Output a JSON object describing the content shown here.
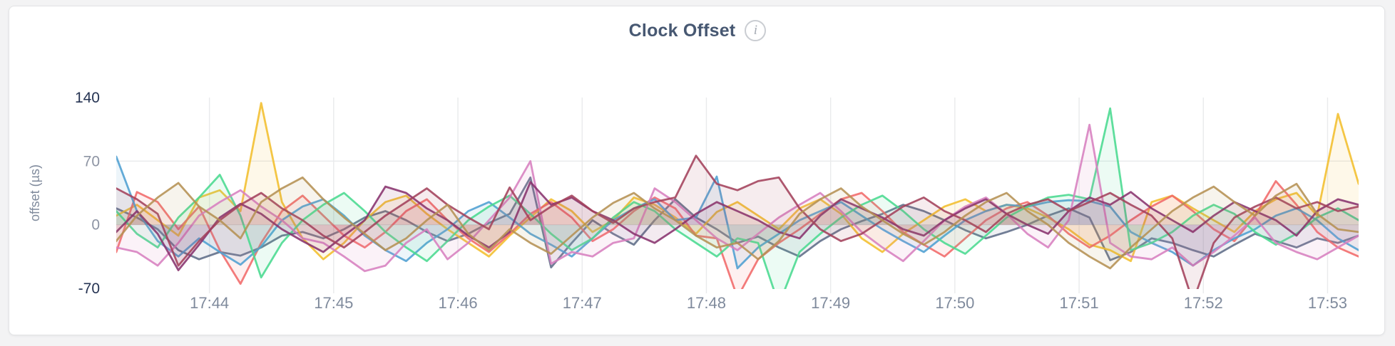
{
  "header": {
    "title": "Clock Offset",
    "info_icon_glyph": "i"
  },
  "chart_data": {
    "type": "line",
    "title": "Clock Offset",
    "xlabel": "",
    "ylabel": "offset (µs)",
    "ylim": [
      -70,
      140
    ],
    "grid": "on",
    "legend_position": "none",
    "x_window_seconds": 600,
    "sample_interval_seconds": 10,
    "yticks": [
      {
        "value": 140,
        "label": "140",
        "emphasized": true,
        "gridline": false
      },
      {
        "value": 70,
        "label": "70",
        "emphasized": false,
        "gridline": true
      },
      {
        "value": 0,
        "label": "0",
        "emphasized": false,
        "gridline": true
      },
      {
        "value": -70,
        "label": "-70",
        "emphasized": true,
        "gridline": false
      }
    ],
    "xticks": [
      {
        "t": 45,
        "label": "17:44"
      },
      {
        "t": 105,
        "label": "17:45"
      },
      {
        "t": 165,
        "label": "17:46"
      },
      {
        "t": 225,
        "label": "17:47"
      },
      {
        "t": 285,
        "label": "17:48"
      },
      {
        "t": 345,
        "label": "17:49"
      },
      {
        "t": 405,
        "label": "17:50"
      },
      {
        "t": 465,
        "label": "17:51"
      },
      {
        "t": 525,
        "label": "17:52"
      },
      {
        "t": 585,
        "label": "17:53"
      }
    ],
    "style": {
      "grid_color": "#e9eaec",
      "ytick_color": "#8d94a3",
      "ytick_emphasis_color": "#253352",
      "xtick_color": "#7f8a9c",
      "axis_label_color": "#7f8a9c",
      "fill_opacity": 0.1,
      "stroke_opacity": 0.88,
      "line_width": 2.8
    },
    "series": [
      {
        "name": "series-1",
        "color": "#5F6C87",
        "values": [
          18,
          8,
          -5,
          -28,
          -38,
          -30,
          -34,
          -25,
          -12,
          -8,
          -15,
          -5,
          8,
          15,
          5,
          -8,
          -18,
          -10,
          2,
          12,
          52,
          -47,
          -20,
          5,
          -10,
          -22,
          5,
          28,
          8,
          -5,
          -20,
          -13,
          -25,
          -35,
          -18,
          -5,
          4,
          12,
          22,
          15,
          5,
          -6,
          -15,
          -8,
          0,
          10,
          18,
          8,
          -39,
          -30,
          -15,
          -20,
          -28,
          -35,
          -22,
          -10,
          -18,
          -25,
          -15,
          -20,
          -12
        ]
      },
      {
        "name": "series-2",
        "color": "#F2BE2C",
        "values": [
          10,
          22,
          5,
          -12,
          30,
          38,
          15,
          134,
          25,
          -15,
          -38,
          -20,
          5,
          25,
          32,
          12,
          -5,
          -20,
          -35,
          -12,
          8,
          28,
          15,
          -8,
          5,
          30,
          22,
          8,
          -10,
          14,
          25,
          10,
          -5,
          18,
          28,
          12,
          -15,
          -30,
          -10,
          5,
          20,
          28,
          15,
          22,
          18,
          8,
          -5,
          -22,
          -28,
          -40,
          25,
          32,
          18,
          5,
          -8,
          15,
          28,
          35,
          10,
          122,
          45
        ]
      },
      {
        "name": "series-3",
        "color": "#F16969",
        "values": [
          -30,
          36,
          25,
          -5,
          20,
          -28,
          -65,
          -20,
          15,
          32,
          10,
          -12,
          -25,
          -8,
          15,
          28,
          5,
          -15,
          -30,
          -10,
          12,
          25,
          8,
          -18,
          -5,
          15,
          30,
          18,
          -12,
          -15,
          -80,
          -38,
          -20,
          -5,
          12,
          28,
          35,
          15,
          -8,
          -22,
          -35,
          -15,
          5,
          18,
          25,
          10,
          -10,
          -25,
          -12,
          5,
          20,
          32,
          15,
          -5,
          -18,
          10,
          48,
          22,
          -8,
          -25,
          -35
        ]
      },
      {
        "name": "series-4",
        "color": "#4E9FD1",
        "values": [
          75,
          15,
          -18,
          -35,
          -15,
          -30,
          -44,
          -24,
          5,
          20,
          28,
          10,
          -12,
          -28,
          -40,
          -20,
          -5,
          15,
          25,
          8,
          -10,
          -22,
          -35,
          -15,
          5,
          18,
          28,
          5,
          8,
          53,
          -48,
          -25,
          -10,
          5,
          15,
          25,
          10,
          -5,
          -18,
          -30,
          -12,
          5,
          15,
          22,
          20,
          25,
          27,
          26,
          20,
          -8,
          -20,
          -30,
          -45,
          -28,
          -15,
          -5,
          10,
          18,
          5,
          -15,
          -28
        ]
      },
      {
        "name": "series-5",
        "color": "#49D990",
        "values": [
          15,
          -10,
          -25,
          8,
          30,
          55,
          10,
          -58,
          -20,
          5,
          22,
          35,
          15,
          -8,
          -25,
          -40,
          -18,
          5,
          20,
          32,
          12,
          -10,
          -28,
          -15,
          8,
          25,
          15,
          -5,
          -20,
          -35,
          -15,
          -20,
          -88,
          -30,
          -10,
          8,
          22,
          32,
          15,
          -5,
          -20,
          -32,
          -12,
          8,
          20,
          30,
          33,
          28,
          128,
          -28,
          -20,
          -8,
          10,
          22,
          12,
          -8,
          -22,
          -10,
          8,
          18,
          5
        ]
      },
      {
        "name": "series-6",
        "color": "#D77FBF",
        "values": [
          -25,
          -30,
          -45,
          -20,
          10,
          25,
          38,
          20,
          5,
          -15,
          -20,
          -35,
          -51,
          -45,
          -20,
          -5,
          -38,
          -20,
          5,
          30,
          70,
          -43,
          -30,
          -35,
          -20,
          -15,
          40,
          25,
          5,
          -15,
          -28,
          -10,
          8,
          22,
          35,
          15,
          -8,
          -25,
          -40,
          -18,
          5,
          20,
          30,
          12,
          -10,
          -25,
          5,
          110,
          -20,
          -35,
          -38,
          -25,
          -45,
          -30,
          -12,
          8,
          -20,
          -30,
          -38,
          -25,
          -12
        ]
      },
      {
        "name": "series-7",
        "color": "#87326D",
        "values": [
          -8,
          15,
          -10,
          -50,
          -22,
          8,
          23,
          12,
          -5,
          -18,
          -30,
          -12,
          5,
          42,
          35,
          18,
          5,
          -12,
          -25,
          -8,
          47,
          22,
          30,
          15,
          5,
          -10,
          -20,
          -5,
          12,
          25,
          15,
          5,
          -8,
          -15,
          10,
          28,
          18,
          8,
          -5,
          -12,
          5,
          18,
          28,
          12,
          0,
          -10,
          15,
          30,
          22,
          36,
          18,
          5,
          -8,
          10,
          25,
          15,
          5,
          -12,
          15,
          28,
          22
        ]
      },
      {
        "name": "series-8",
        "color": "#A3415B",
        "values": [
          40,
          28,
          12,
          -45,
          -18,
          5,
          22,
          35,
          18,
          5,
          -12,
          -25,
          -8,
          10,
          25,
          40,
          22,
          8,
          -5,
          41,
          5,
          20,
          32,
          15,
          2,
          18,
          25,
          30,
          76,
          45,
          38,
          48,
          52,
          18,
          -5,
          -18,
          -10,
          5,
          20,
          30,
          15,
          5,
          -8,
          12,
          22,
          28,
          15,
          25,
          35,
          22,
          10,
          -15,
          -85,
          -20,
          8,
          20,
          30,
          18,
          25,
          15,
          20
        ]
      },
      {
        "name": "series-9",
        "color": "#B59153",
        "values": [
          -18,
          10,
          30,
          46,
          20,
          5,
          -15,
          25,
          40,
          52,
          28,
          8,
          -10,
          -28,
          -15,
          5,
          22,
          -10,
          -28,
          -5,
          -20,
          -32,
          -12,
          8,
          24,
          35,
          18,
          5,
          -12,
          -25,
          -20,
          -38,
          -18,
          12,
          28,
          40,
          20,
          5,
          -10,
          -22,
          -8,
          10,
          25,
          35,
          15,
          0,
          -20,
          -35,
          -48,
          -25,
          -5,
          15,
          30,
          42,
          25,
          10,
          32,
          45,
          12,
          -5,
          -8
        ]
      }
    ]
  }
}
